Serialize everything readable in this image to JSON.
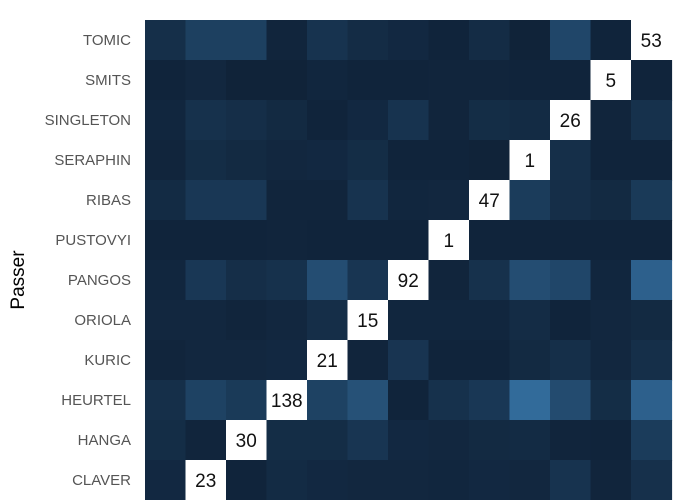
{
  "chart_data": {
    "type": "heatmap",
    "title": "",
    "ylabel": "Passer",
    "xlabel": "",
    "rows": [
      "TOMIC",
      "SMITS",
      "SINGLETON",
      "SERAPHIN",
      "RIBAS",
      "PUSTOVYI",
      "PANGOS",
      "ORIOLA",
      "KURIC",
      "HEURTEL",
      "HANGA",
      "CLAVER"
    ],
    "values": [
      [
        12,
        28,
        28,
        3,
        16,
        9,
        6,
        2,
        9,
        1,
        34,
        2,
        53
      ],
      [
        2,
        5,
        1,
        1,
        4,
        2,
        2,
        3,
        3,
        2,
        2,
        5,
        2
      ],
      [
        4,
        14,
        11,
        7,
        2,
        6,
        16,
        3,
        10,
        8,
        26,
        3,
        14
      ],
      [
        3,
        10,
        7,
        5,
        6,
        10,
        2,
        2,
        1,
        1,
        12,
        2,
        2
      ],
      [
        8,
        20,
        20,
        3,
        3,
        16,
        4,
        5,
        47,
        24,
        11,
        7,
        22
      ],
      [
        2,
        2,
        2,
        3,
        2,
        2,
        2,
        1,
        2,
        2,
        2,
        2,
        2
      ],
      [
        4,
        20,
        11,
        14,
        40,
        18,
        92,
        3,
        14,
        40,
        34,
        4,
        58
      ],
      [
        5,
        5,
        3,
        5,
        11,
        15,
        4,
        4,
        4,
        9,
        2,
        5,
        7
      ],
      [
        3,
        5,
        5,
        6,
        21,
        3,
        17,
        2,
        2,
        7,
        12,
        5,
        12
      ],
      [
        12,
        30,
        22,
        138,
        30,
        44,
        2,
        14,
        20,
        68,
        38,
        10,
        58
      ],
      [
        10,
        3,
        30,
        10,
        10,
        18,
        6,
        5,
        7,
        8,
        3,
        2,
        24
      ],
      [
        6,
        23,
        2,
        8,
        6,
        5,
        5,
        4,
        6,
        5,
        16,
        3,
        13
      ]
    ],
    "diagonal_col": [
      12,
      11,
      10,
      9,
      8,
      7,
      6,
      5,
      4,
      3,
      2,
      1
    ],
    "color_min": "#0f2238",
    "color_max": "#56b6ff",
    "diag_color": "#ffffff",
    "value_max": 138
  }
}
